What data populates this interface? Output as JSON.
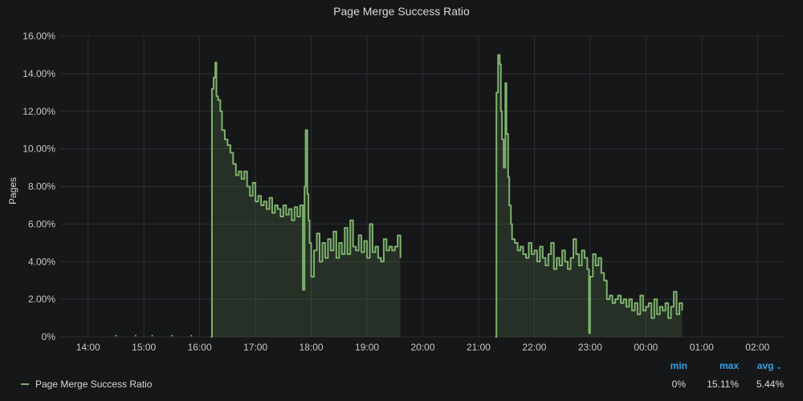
{
  "panel": {
    "title": "Page Merge Success Ratio"
  },
  "colors": {
    "series": "#7eb26d",
    "grid": "#2d2e31",
    "legend_header": "#33a2e5"
  },
  "chart_data": {
    "type": "area",
    "title": "Page Merge Success Ratio",
    "ylabel": "Pages",
    "xlabel": "",
    "x_unit": "hours",
    "ylim": [
      0,
      16
    ],
    "xlim": [
      13.5,
      26.5
    ],
    "y_ticks": [
      0,
      2,
      4,
      6,
      8,
      10,
      12,
      14,
      16
    ],
    "y_tick_labels": [
      "0%",
      "2.00%",
      "4.00%",
      "6.00%",
      "8.00%",
      "10.00%",
      "12.00%",
      "14.00%",
      "16.00%"
    ],
    "x_ticks": [
      14,
      15,
      16,
      17,
      18,
      19,
      20,
      21,
      22,
      23,
      24,
      25,
      26
    ],
    "x_tick_labels": [
      "14:00",
      "15:00",
      "16:00",
      "17:00",
      "18:00",
      "19:00",
      "20:00",
      "21:00",
      "22:00",
      "23:00",
      "00:00",
      "01:00",
      "02:00"
    ],
    "grid": true,
    "legend_position": "bottom",
    "series": [
      {
        "name": "Page Merge Success Ratio",
        "segments": [
          {
            "x": [
              16.2,
              16.22,
              16.25,
              16.28,
              16.3,
              16.33,
              16.37,
              16.4,
              16.45,
              16.5,
              16.55,
              16.6,
              16.65,
              16.7,
              16.75,
              16.8,
              16.85,
              16.9,
              16.95,
              17.0,
              17.05,
              17.1,
              17.15,
              17.2,
              17.25,
              17.3,
              17.35,
              17.4,
              17.45,
              17.5,
              17.55,
              17.6,
              17.65,
              17.7,
              17.75,
              17.8,
              17.85,
              17.88,
              17.9,
              17.93,
              17.95,
              17.97,
              18.0,
              18.05,
              18.1,
              18.15,
              18.2,
              18.25,
              18.3,
              18.35,
              18.4,
              18.45,
              18.5,
              18.55,
              18.6,
              18.65,
              18.7,
              18.75,
              18.8,
              18.85,
              18.9,
              18.95,
              19.0,
              19.05,
              19.1,
              19.15,
              19.2,
              19.25,
              19.3,
              19.35,
              19.4,
              19.45,
              19.5,
              19.55,
              19.6
            ],
            "y": [
              0,
              13.2,
              13.8,
              14.6,
              12.8,
              12.6,
              12.0,
              11.0,
              10.5,
              10.2,
              9.8,
              9.2,
              8.6,
              8.8,
              8.4,
              8.8,
              8.0,
              7.5,
              8.2,
              7.2,
              7.5,
              7.0,
              7.2,
              6.8,
              7.4,
              6.6,
              7.0,
              6.8,
              6.4,
              7.0,
              6.5,
              6.8,
              6.2,
              6.9,
              6.4,
              7.0,
              2.5,
              8.0,
              11.0,
              7.6,
              6.2,
              5.0,
              3.2,
              4.6,
              5.5,
              4.0,
              5.0,
              4.2,
              5.2,
              4.6,
              5.6,
              4.2,
              5.0,
              4.4,
              5.8,
              4.4,
              6.2,
              4.8,
              4.6,
              5.4,
              4.5,
              5.1,
              4.2,
              6.0,
              4.5,
              4.8,
              4.2,
              4.0,
              5.2,
              4.6,
              4.8,
              4.6,
              4.8,
              5.4,
              4.2
            ]
          },
          {
            "x": [
              21.3,
              21.32,
              21.35,
              21.38,
              21.4,
              21.42,
              21.45,
              21.48,
              21.5,
              21.53,
              21.55,
              21.58,
              21.6,
              21.65,
              21.7,
              21.75,
              21.8,
              21.85,
              21.9,
              21.95,
              22.0,
              22.05,
              22.1,
              22.15,
              22.2,
              22.25,
              22.3,
              22.35,
              22.4,
              22.45,
              22.5,
              22.55,
              22.6,
              22.65,
              22.7,
              22.75,
              22.8,
              22.85,
              22.9,
              22.95,
              22.98,
              23.0,
              23.05,
              23.1,
              23.15,
              23.2,
              23.25,
              23.3,
              23.35,
              23.4,
              23.45,
              23.5,
              23.55,
              23.6,
              23.65,
              23.7,
              23.75,
              23.8,
              23.85,
              23.9,
              23.95,
              24.0,
              24.05,
              24.1,
              24.15,
              24.2,
              24.25,
              24.3,
              24.35,
              24.4,
              24.45,
              24.5,
              24.55,
              24.6,
              24.65
            ],
            "y": [
              0,
              13.0,
              15.0,
              14.5,
              12.0,
              10.5,
              9.0,
              13.5,
              10.8,
              8.5,
              7.0,
              6.0,
              5.2,
              5.0,
              4.6,
              4.8,
              4.4,
              4.2,
              5.0,
              4.4,
              4.6,
              4.0,
              4.8,
              4.2,
              3.8,
              4.4,
              5.0,
              3.6,
              4.2,
              3.8,
              4.6,
              4.0,
              3.6,
              4.2,
              5.2,
              4.4,
              3.8,
              4.6,
              4.2,
              3.6,
              0.2,
              3.2,
              4.4,
              3.8,
              4.2,
              3.4,
              3.0,
              2.0,
              2.2,
              1.8,
              2.0,
              2.2,
              1.8,
              2.0,
              1.6,
              2.0,
              1.4,
              1.8,
              1.2,
              2.2,
              1.4,
              1.6,
              1.8,
              1.0,
              2.0,
              1.2,
              1.6,
              1.4,
              1.8,
              1.0,
              1.6,
              2.4,
              1.2,
              1.8,
              1.4
            ]
          },
          {
            "x": [
              14.5,
              14.85,
              15.15,
              15.5,
              15.85
            ],
            "y": [
              0.02,
              0.02,
              0.02,
              0.02,
              0.02
            ]
          }
        ]
      }
    ]
  },
  "legend": {
    "series_name": "Page Merge Success Ratio",
    "columns": [
      {
        "label": "min",
        "value": "0%"
      },
      {
        "label": "max",
        "value": "15.11%"
      },
      {
        "label": "avg",
        "value": "5.44%",
        "sorted": true
      }
    ]
  }
}
